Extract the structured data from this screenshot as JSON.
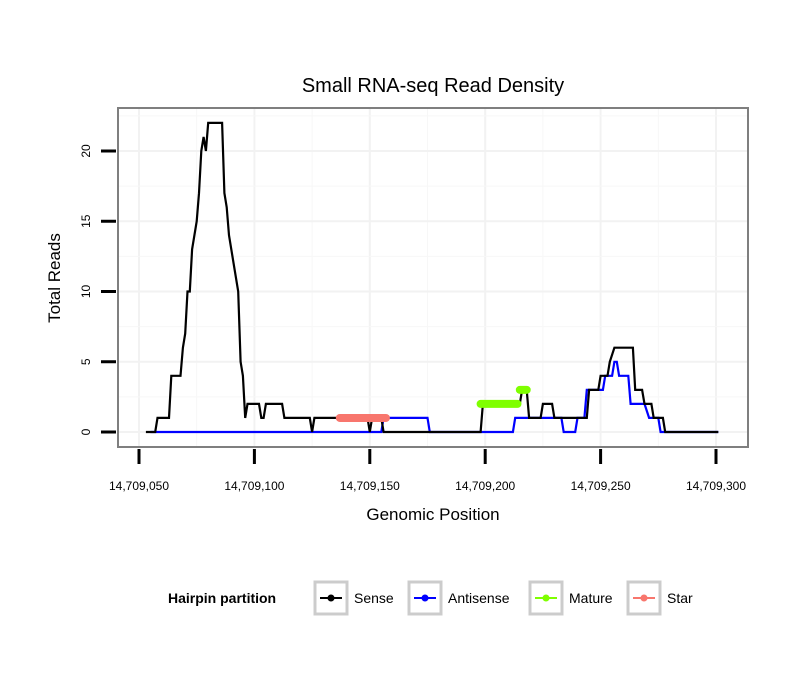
{
  "chart_data": {
    "type": "line",
    "title": "Small RNA-seq Read Density",
    "xlabel": "Genomic Position",
    "ylabel": "Total Reads",
    "xlim": [
      14709043,
      14709330
    ],
    "ylim": [
      -1,
      22.8
    ],
    "x_ticks": [
      14709050,
      14709100,
      14709150,
      14709200,
      14709250,
      14709300
    ],
    "x_tick_labels": [
      "14,709,050",
      "14,709,100",
      "14,709,150",
      "14,709,200",
      "14,709,250",
      "14,709,300"
    ],
    "y_ticks": [
      0,
      5,
      10,
      15,
      20
    ],
    "y_tick_labels": [
      "0",
      "5",
      "10",
      "15",
      "20"
    ],
    "grid": true,
    "legend": {
      "title": "Hairpin partition",
      "placement": "bottom",
      "entries": [
        {
          "name": "Sense",
          "color": "#000000"
        },
        {
          "name": "Antisense",
          "color": "#0000ff"
        },
        {
          "name": "Mature",
          "color": "#7fff00"
        },
        {
          "name": "Star",
          "color": "#f8766d"
        }
      ]
    },
    "series": [
      {
        "name": "Sense",
        "color": "#000000",
        "points": [
          [
            14709053,
            0
          ],
          [
            14709057,
            0
          ],
          [
            14709058,
            1
          ],
          [
            14709063,
            1
          ],
          [
            14709064,
            4
          ],
          [
            14709068,
            4
          ],
          [
            14709069,
            6
          ],
          [
            14709070,
            7
          ],
          [
            14709071,
            10
          ],
          [
            14709072,
            10
          ],
          [
            14709073,
            13
          ],
          [
            14709074,
            14
          ],
          [
            14709075,
            15
          ],
          [
            14709076,
            17
          ],
          [
            14709077,
            20
          ],
          [
            14709078,
            21
          ],
          [
            14709079,
            20
          ],
          [
            14709080,
            22
          ],
          [
            14709086,
            22
          ],
          [
            14709087,
            17
          ],
          [
            14709088,
            16
          ],
          [
            14709089,
            14
          ],
          [
            14709091,
            12
          ],
          [
            14709092,
            11
          ],
          [
            14709093,
            10
          ],
          [
            14709094,
            5
          ],
          [
            14709095,
            4
          ],
          [
            14709096,
            1
          ],
          [
            14709097,
            2
          ],
          [
            14709102,
            2
          ],
          [
            14709103,
            1
          ],
          [
            14709104,
            1
          ],
          [
            14709105,
            2
          ],
          [
            14709112,
            2
          ],
          [
            14709113,
            1
          ],
          [
            14709124,
            1
          ],
          [
            14709125,
            0
          ],
          [
            14709126,
            1
          ],
          [
            14709149,
            1
          ],
          [
            14709150,
            0
          ],
          [
            14709151,
            1
          ],
          [
            14709155,
            1
          ],
          [
            14709156,
            0
          ],
          [
            14709198,
            0
          ],
          [
            14709199,
            2
          ],
          [
            14709215,
            2
          ],
          [
            14709216,
            3
          ],
          [
            14709218,
            3
          ],
          [
            14709219,
            1
          ],
          [
            14709224,
            1
          ],
          [
            14709225,
            2
          ],
          [
            14709229,
            2
          ],
          [
            14709230,
            1
          ],
          [
            14709244,
            1
          ],
          [
            14709245,
            3
          ],
          [
            14709249,
            3
          ],
          [
            14709250,
            4
          ],
          [
            14709253,
            4
          ],
          [
            14709254,
            5
          ],
          [
            14709256,
            6
          ],
          [
            14709264,
            6
          ],
          [
            14709265,
            3
          ],
          [
            14709268,
            3
          ],
          [
            14709269,
            2
          ],
          [
            14709272,
            2
          ],
          [
            14709273,
            1
          ],
          [
            14709277,
            1
          ],
          [
            14709278,
            0
          ],
          [
            14709301,
            0
          ]
        ]
      },
      {
        "name": "Antisense",
        "color": "#0000ff",
        "points": [
          [
            14709055,
            0
          ],
          [
            14709155,
            0
          ],
          [
            14709156,
            1
          ],
          [
            14709175,
            1
          ],
          [
            14709176,
            0
          ],
          [
            14709212,
            0
          ],
          [
            14709213,
            1
          ],
          [
            14709233,
            1
          ],
          [
            14709234,
            0
          ],
          [
            14709239,
            0
          ],
          [
            14709240,
            1
          ],
          [
            14709243,
            1
          ],
          [
            14709244,
            3
          ],
          [
            14709251,
            3
          ],
          [
            14709252,
            4
          ],
          [
            14709255,
            4
          ],
          [
            14709256,
            5
          ],
          [
            14709257,
            5
          ],
          [
            14709258,
            4
          ],
          [
            14709262,
            4
          ],
          [
            14709263,
            2
          ],
          [
            14709269,
            2
          ],
          [
            14709271,
            1
          ],
          [
            14709275,
            1
          ],
          [
            14709276,
            0
          ],
          [
            14709301,
            0
          ]
        ]
      },
      {
        "name": "Mature",
        "color": "#7fff00",
        "segments": [
          {
            "start": 14709198,
            "end": 14709214,
            "value": 2
          },
          {
            "start": 14709215,
            "end": 14709218,
            "value": 3
          }
        ]
      },
      {
        "name": "Star",
        "color": "#f8766d",
        "segments": [
          {
            "start": 14709137,
            "end": 14709157,
            "value": 1
          }
        ]
      }
    ]
  }
}
